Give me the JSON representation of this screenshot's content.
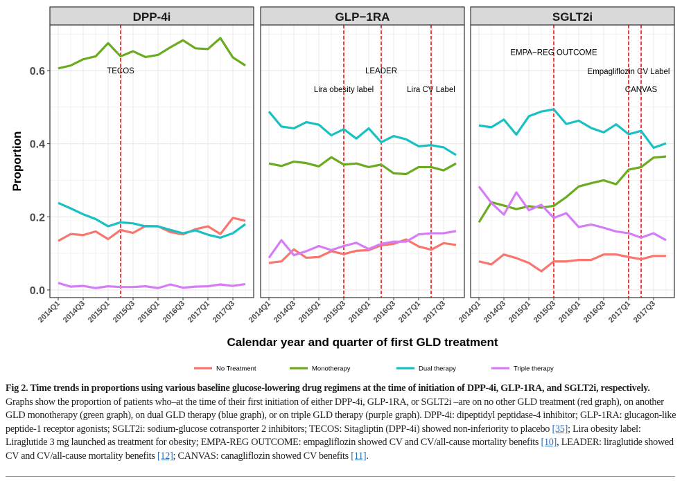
{
  "chart_data": {
    "type": "line",
    "xlabel": "Calendar year and quarter of first GLD treatment",
    "ylabel": "Proportion",
    "ylim": [
      -0.021,
      0.725
    ],
    "yticks": [
      0.0,
      0.2,
      0.4,
      0.6
    ],
    "ytick_labels": [
      "0.0",
      "0.2",
      "0.4",
      "0.6"
    ],
    "x": [
      "2014Q1",
      "2014Q2",
      "2014Q3",
      "2014Q4",
      "2015Q1",
      "2015Q2",
      "2015Q3",
      "2015Q4",
      "2016Q1",
      "2016Q2",
      "2016Q3",
      "2016Q4",
      "2017Q1",
      "2017Q2",
      "2017Q3",
      "2017Q4"
    ],
    "xtick_labels": [
      "2014Q1",
      "2014Q3",
      "2015Q1",
      "2015Q3",
      "2016Q1",
      "2016Q3",
      "2017Q1",
      "2017Q3"
    ],
    "grid": true,
    "legend_position": "bottom",
    "legend": [
      {
        "name": "No Treatment",
        "color": "#f8766d"
      },
      {
        "name": "Monotherapy",
        "color": "#6bab1f"
      },
      {
        "name": "Dual therapy",
        "color": "#19c0c4"
      },
      {
        "name": "Triple therapy",
        "color": "#d57cf7"
      }
    ],
    "panels": [
      {
        "title": "DPP-4i",
        "series": [
          {
            "name": "No Treatment",
            "values": [
              0.134,
              0.153,
              0.15,
              0.16,
              0.139,
              0.164,
              0.156,
              0.175,
              0.174,
              0.158,
              0.152,
              0.166,
              0.174,
              0.153,
              0.197,
              0.189
            ]
          },
          {
            "name": "Monotherapy",
            "values": [
              0.606,
              0.614,
              0.631,
              0.639,
              0.675,
              0.639,
              0.653,
              0.637,
              0.643,
              0.664,
              0.683,
              0.661,
              0.659,
              0.689,
              0.636,
              0.614
            ]
          },
          {
            "name": "Dual therapy",
            "values": [
              0.238,
              0.223,
              0.207,
              0.194,
              0.174,
              0.185,
              0.182,
              0.174,
              0.174,
              0.164,
              0.155,
              0.163,
              0.151,
              0.143,
              0.155,
              0.18
            ]
          },
          {
            "name": "Triple therapy",
            "values": [
              0.019,
              0.009,
              0.011,
              0.005,
              0.01,
              0.008,
              0.008,
              0.01,
              0.005,
              0.015,
              0.006,
              0.009,
              0.01,
              0.015,
              0.011,
              0.016
            ]
          }
        ],
        "events": [
          {
            "label": "TECOS",
            "quarter": "2015Q2",
            "label_y": 0.6
          }
        ]
      },
      {
        "title": "GLP−1RA",
        "series": [
          {
            "name": "No Treatment",
            "values": [
              0.074,
              0.078,
              0.111,
              0.088,
              0.09,
              0.106,
              0.098,
              0.107,
              0.109,
              0.122,
              0.126,
              0.138,
              0.119,
              0.11,
              0.128,
              0.123
            ]
          },
          {
            "name": "Monotherapy",
            "values": [
              0.346,
              0.339,
              0.351,
              0.347,
              0.338,
              0.363,
              0.343,
              0.346,
              0.336,
              0.343,
              0.319,
              0.317,
              0.336,
              0.336,
              0.327,
              0.346
            ]
          },
          {
            "name": "Dual therapy",
            "values": [
              0.488,
              0.447,
              0.442,
              0.459,
              0.452,
              0.423,
              0.44,
              0.414,
              0.442,
              0.404,
              0.421,
              0.412,
              0.393,
              0.396,
              0.39,
              0.369
            ]
          },
          {
            "name": "Triple therapy",
            "values": [
              0.088,
              0.136,
              0.095,
              0.106,
              0.12,
              0.109,
              0.12,
              0.129,
              0.112,
              0.126,
              0.132,
              0.132,
              0.152,
              0.155,
              0.155,
              0.161
            ]
          }
        ],
        "events": [
          {
            "label": "Lira obesity label",
            "quarter": "2015Q3",
            "label_y": 0.549
          },
          {
            "label": "LEADER",
            "quarter": "2016Q2",
            "label_y": 0.6
          },
          {
            "label": "Lira CV Label",
            "quarter": "2017Q2",
            "label_y": 0.549
          }
        ]
      },
      {
        "title": "SGLT2i",
        "series": [
          {
            "name": "No Treatment",
            "values": [
              0.078,
              0.07,
              0.097,
              0.087,
              0.074,
              0.051,
              0.078,
              0.078,
              0.082,
              0.082,
              0.097,
              0.097,
              0.09,
              0.084,
              0.093,
              0.093
            ]
          },
          {
            "name": "Monotherapy",
            "values": [
              0.185,
              0.24,
              0.231,
              0.221,
              0.229,
              0.225,
              0.23,
              0.254,
              0.283,
              0.292,
              0.3,
              0.289,
              0.329,
              0.336,
              0.362,
              0.365
            ]
          },
          {
            "name": "Dual therapy",
            "values": [
              0.45,
              0.445,
              0.466,
              0.425,
              0.475,
              0.488,
              0.494,
              0.454,
              0.463,
              0.443,
              0.431,
              0.453,
              0.426,
              0.435,
              0.389,
              0.401
            ]
          },
          {
            "name": "Triple therapy",
            "values": [
              0.283,
              0.238,
              0.206,
              0.267,
              0.218,
              0.233,
              0.197,
              0.21,
              0.172,
              0.179,
              0.17,
              0.16,
              0.155,
              0.143,
              0.155,
              0.136
            ]
          }
        ],
        "events": [
          {
            "label": "EMPA−REG OUTCOME",
            "quarter": "2015Q3",
            "label_y": 0.65
          },
          {
            "label": "Empagliflozin CV Label",
            "quarter": "2017Q1",
            "label_y": 0.598
          },
          {
            "label": "CANVAS",
            "quarter": "2017Q2",
            "label_y": 0.549
          }
        ]
      }
    ]
  },
  "caption": [
    {
      "t": "b",
      "text": "Fig 2. Time trends in proportions using various baseline glucose-lowering drug regimens at the time of initiation of DPP-4i, GLP-1RA, and SGLT2i, respectively."
    },
    {
      "t": "p",
      "text": " Graphs show the proportion of patients who–at the time of their first initiation of either DPP-4i, GLP-1RA, or SGLT2i –are on no other GLD treatment (red graph), on another GLD monotherapy (green graph), on dual GLD therapy (blue graph), or on triple GLD therapy (purple graph). DPP-4i: dipeptidyl peptidase-4 inhibitor; GLP-1RA: glucagon-like peptide-1 receptor agonists; SGLT2i: sodium-glucose cotransporter 2 inhibitors; TECOS: Sitagliptin (DPP-4i) showed non-inferiority to placebo "
    },
    {
      "t": "a",
      "text": "[35]"
    },
    {
      "t": "p",
      "text": "; Lira obesity label: Liraglutide 3 mg launched as treatment for obesity; EMPA-REG OUTCOME: empagliflozin showed CV and CV/all-cause mortality benefits "
    },
    {
      "t": "a",
      "text": "[10]"
    },
    {
      "t": "p",
      "text": ", LEADER: liraglutide showed CV and CV/all-cause mortality benefits "
    },
    {
      "t": "a",
      "text": "[12]"
    },
    {
      "t": "p",
      "text": "; CANVAS: canagliflozin showed CV benefits "
    },
    {
      "t": "a",
      "text": "[11]"
    },
    {
      "t": "p",
      "text": "."
    }
  ]
}
